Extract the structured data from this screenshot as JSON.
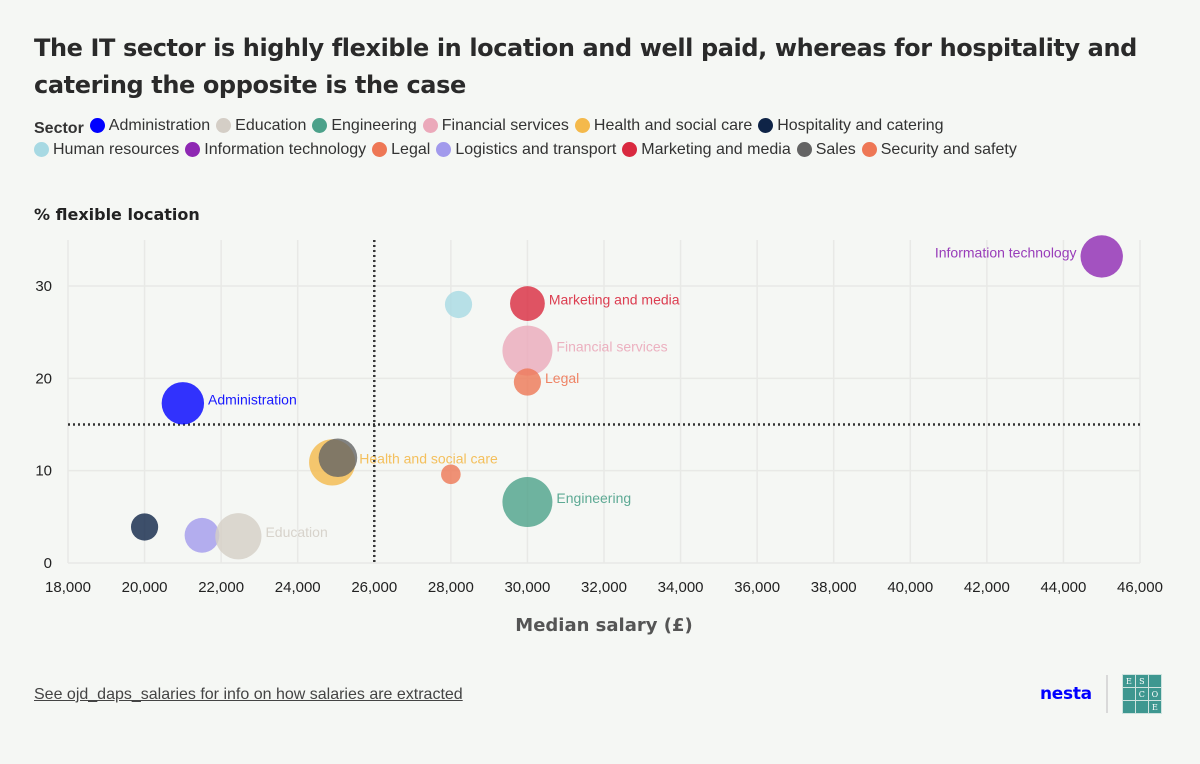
{
  "title": "The IT sector is highly flexible in location and well paid, whereas for hospitality and catering the opposite is the case",
  "legend": {
    "title": "Sector",
    "items": [
      {
        "label": "Administration",
        "color": "#0000ff"
      },
      {
        "label": "Education",
        "color": "#d4cec6"
      },
      {
        "label": "Engineering",
        "color": "#4ca18a"
      },
      {
        "label": "Financial services",
        "color": "#eba9ba"
      },
      {
        "label": "Health and social care",
        "color": "#f4b94b"
      },
      {
        "label": "Hospitality and catering",
        "color": "#0f2447"
      },
      {
        "label": "Human resources",
        "color": "#a7d9e3"
      },
      {
        "label": "Information technology",
        "color": "#8e28b3"
      },
      {
        "label": "Legal",
        "color": "#ee7755"
      },
      {
        "label": "Logistics and transport",
        "color": "#a29aec"
      },
      {
        "label": "Marketing and media",
        "color": "#d9293f"
      },
      {
        "label": "Sales",
        "color": "#646464"
      },
      {
        "label": "Security and safety",
        "color": "#ee7755"
      }
    ]
  },
  "chart_data": {
    "type": "scatter",
    "subtype": "bubble",
    "title": "The IT sector is highly flexible in location and well paid, whereas for hospitality and catering the opposite is the case",
    "xlabel": "Median salary (£)",
    "ylabel": "% flexible location",
    "xlim": [
      18000,
      46000
    ],
    "ylim": [
      0,
      35
    ],
    "xticks": [
      "18,000",
      "20,000",
      "22,000",
      "24,000",
      "26,000",
      "28,000",
      "30,000",
      "32,000",
      "34,000",
      "36,000",
      "38,000",
      "40,000",
      "42,000",
      "44,000",
      "46,000"
    ],
    "xtick_values": [
      18000,
      20000,
      22000,
      24000,
      26000,
      28000,
      30000,
      32000,
      34000,
      36000,
      38000,
      40000,
      42000,
      44000,
      46000
    ],
    "yticks": [
      "0",
      "10",
      "20",
      "30"
    ],
    "ytick_values": [
      0,
      10,
      20,
      30
    ],
    "grid": true,
    "legend_position": "top",
    "reference_lines": {
      "x": 26000,
      "y": 15
    },
    "points": [
      {
        "sector": "Information technology",
        "x": 45000,
        "y": 33.2,
        "size": 4,
        "label": "Information technology",
        "label_side": "left"
      },
      {
        "sector": "Human resources",
        "x": 28200,
        "y": 28.0,
        "size": 2,
        "label": "",
        "label_side": "right"
      },
      {
        "sector": "Marketing and media",
        "x": 30000,
        "y": 28.1,
        "size": 3,
        "label": "Marketing and media",
        "label_side": "right"
      },
      {
        "sector": "Financial services",
        "x": 30000,
        "y": 23.0,
        "size": 5,
        "label": "Financial services",
        "label_side": "right"
      },
      {
        "sector": "Legal",
        "x": 30000,
        "y": 19.6,
        "size": 2,
        "label": "Legal",
        "label_side": "right"
      },
      {
        "sector": "Administration",
        "x": 21000,
        "y": 17.3,
        "size": 4,
        "label": "Administration",
        "label_side": "right"
      },
      {
        "sector": "Health and social care",
        "x": 24900,
        "y": 10.9,
        "size": 4.5,
        "label": "Health and social care",
        "label_side": "right"
      },
      {
        "sector": "Sales",
        "x": 25050,
        "y": 11.4,
        "size": 3.5,
        "label": "",
        "label_side": "right"
      },
      {
        "sector": "Security and safety",
        "x": 28000,
        "y": 9.6,
        "size": 1,
        "label": "",
        "label_side": "right"
      },
      {
        "sector": "Engineering",
        "x": 30000,
        "y": 6.6,
        "size": 5,
        "label": "Engineering",
        "label_side": "right"
      },
      {
        "sector": "Hospitality and catering",
        "x": 20000,
        "y": 3.9,
        "size": 2,
        "label": "",
        "label_side": "right"
      },
      {
        "sector": "Logistics and transport",
        "x": 21500,
        "y": 3.0,
        "size": 3,
        "label": "",
        "label_side": "right"
      },
      {
        "sector": "Education",
        "x": 22450,
        "y": 2.9,
        "size": 4.5,
        "label": "Education",
        "label_side": "right"
      }
    ]
  },
  "footer": {
    "link_text": "See ojd_daps_salaries for info on how salaries are extracted"
  },
  "logos": {
    "nesta": "nesta",
    "escoe_cells": [
      "E",
      "S",
      "",
      "",
      "C",
      "O",
      "",
      "",
      "E"
    ]
  }
}
